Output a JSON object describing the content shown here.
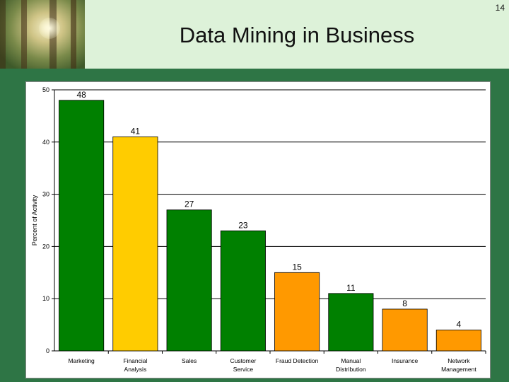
{
  "page_number": "14",
  "title": "Data Mining in Business",
  "colors": {
    "background": "#2E7545",
    "header": "#DDF2D9",
    "green": "#008000",
    "yellow": "#FFCC00",
    "orange": "#FF9900"
  },
  "chart_data": {
    "type": "bar",
    "title": "",
    "xlabel": "",
    "ylabel": "Percent of Activity",
    "ylim": [
      0,
      50
    ],
    "yticks": [
      "0",
      "10",
      "20",
      "30",
      "40",
      "50"
    ],
    "grid": true,
    "categories": [
      [
        "Marketing"
      ],
      [
        "Financial",
        "Analysis"
      ],
      [
        "Sales"
      ],
      [
        "Customer",
        "Service"
      ],
      [
        "Fraud Detection"
      ],
      [
        "Manual",
        "Distribution"
      ],
      [
        "Insurance"
      ],
      [
        "Network",
        "Management"
      ]
    ],
    "values": [
      48,
      41,
      27,
      23,
      15,
      11,
      8,
      4
    ],
    "bar_colors": [
      "#008000",
      "#FFCC00",
      "#008000",
      "#008000",
      "#FF9900",
      "#008000",
      "#FF9900",
      "#FF9900"
    ]
  }
}
